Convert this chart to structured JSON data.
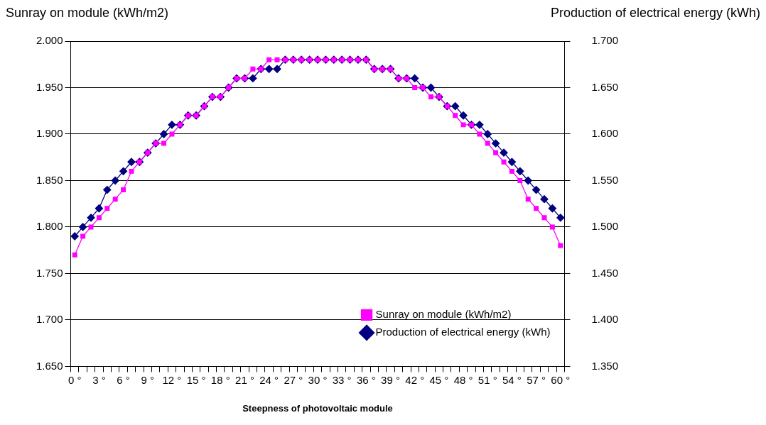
{
  "chart_data": {
    "type": "line",
    "xlabel": "Steepness of photovoltaic module",
    "ylabel": "Sunray on module (kWh/m2)",
    "y2label": "Production of electrical energy (kWh)",
    "categories": [
      "0 °",
      null,
      null,
      "3 °",
      null,
      null,
      "6 °",
      null,
      null,
      "9 °",
      null,
      null,
      "12 °",
      null,
      null,
      "15 °",
      null,
      null,
      "18 °",
      null,
      null,
      "21 °",
      null,
      null,
      "24 °",
      null,
      null,
      "27 °",
      null,
      null,
      "30 °",
      null,
      null,
      "33 °",
      null,
      null,
      "36 °",
      null,
      null,
      "39 °",
      null,
      null,
      "42 °",
      null,
      null,
      "45 °",
      null,
      null,
      "48 °",
      null,
      null,
      "51 °",
      null,
      null,
      "54 °",
      null,
      null,
      "57 °",
      null,
      null,
      "60 °"
    ],
    "series": [
      {
        "name": "Sunray on module (kWh/m2)",
        "color": "#ff00ff",
        "marker": "square",
        "values": [
          1.77,
          1.79,
          1.8,
          1.81,
          1.82,
          1.83,
          1.84,
          1.86,
          1.87,
          1.88,
          1.89,
          1.89,
          1.9,
          1.91,
          1.92,
          1.92,
          1.93,
          1.94,
          1.94,
          1.95,
          1.96,
          1.96,
          1.97,
          1.97,
          1.98,
          1.98,
          1.98,
          1.98,
          1.98,
          1.98,
          1.98,
          1.98,
          1.98,
          1.98,
          1.98,
          1.98,
          1.98,
          1.97,
          1.97,
          1.97,
          1.96,
          1.96,
          1.95,
          1.95,
          1.94,
          1.94,
          1.93,
          1.92,
          1.91,
          1.91,
          1.9,
          1.89,
          1.88,
          1.87,
          1.86,
          1.85,
          1.83,
          1.82,
          1.81,
          1.8,
          1.78
        ]
      },
      {
        "name": "Production of electrical energy (kWh)",
        "color": "#000080",
        "marker": "diamond",
        "axis": "y2",
        "values": [
          1.49,
          1.5,
          1.51,
          1.52,
          1.54,
          1.55,
          1.56,
          1.57,
          1.57,
          1.58,
          1.59,
          1.6,
          1.61,
          1.61,
          1.62,
          1.62,
          1.63,
          1.64,
          1.64,
          1.65,
          1.66,
          1.66,
          1.66,
          1.67,
          1.67,
          1.67,
          1.68,
          1.68,
          1.68,
          1.68,
          1.68,
          1.68,
          1.68,
          1.68,
          1.68,
          1.68,
          1.68,
          1.67,
          1.67,
          1.67,
          1.66,
          1.66,
          1.66,
          1.65,
          1.65,
          1.64,
          1.63,
          1.63,
          1.62,
          1.61,
          1.61,
          1.6,
          1.59,
          1.58,
          1.57,
          1.56,
          1.55,
          1.54,
          1.53,
          1.52,
          1.51
        ]
      }
    ],
    "ylim": [
      1.65,
      2.0
    ],
    "yticks": [
      {
        "value": 1.65,
        "label": "1.650"
      },
      {
        "value": 1.7,
        "label": "1.700"
      },
      {
        "value": 1.75,
        "label": "1.750"
      },
      {
        "value": 1.8,
        "label": "1.800"
      },
      {
        "value": 1.85,
        "label": "1.850"
      },
      {
        "value": 1.9,
        "label": "1.900"
      },
      {
        "value": 1.95,
        "label": "1.950"
      },
      {
        "value": 2.0,
        "label": "2.000"
      }
    ],
    "y2lim": [
      1.35,
      1.7
    ],
    "y2ticks": [
      {
        "value": 1.35,
        "label": "1.350"
      },
      {
        "value": 1.4,
        "label": "1.400"
      },
      {
        "value": 1.45,
        "label": "1.450"
      },
      {
        "value": 1.5,
        "label": "1.500"
      },
      {
        "value": 1.55,
        "label": "1.550"
      },
      {
        "value": 1.6,
        "label": "1.600"
      },
      {
        "value": 1.65,
        "label": "1.650"
      },
      {
        "value": 1.7,
        "label": "1.700"
      }
    ],
    "grid": "y",
    "legend": "bottom right",
    "line_style": "solid"
  }
}
